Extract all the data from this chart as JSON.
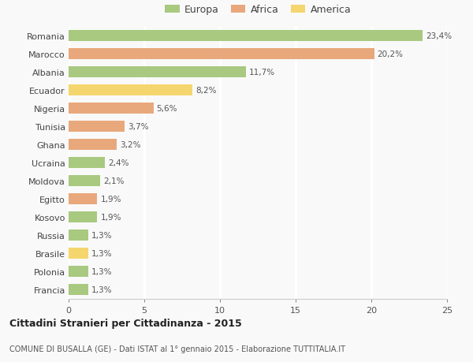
{
  "countries": [
    "Romania",
    "Marocco",
    "Albania",
    "Ecuador",
    "Nigeria",
    "Tunisia",
    "Ghana",
    "Ucraina",
    "Moldova",
    "Egitto",
    "Kosovo",
    "Russia",
    "Brasile",
    "Polonia",
    "Francia"
  ],
  "values": [
    23.4,
    20.2,
    11.7,
    8.2,
    5.6,
    3.7,
    3.2,
    2.4,
    2.1,
    1.9,
    1.9,
    1.3,
    1.3,
    1.3,
    1.3
  ],
  "labels": [
    "23,4%",
    "20,2%",
    "11,7%",
    "8,2%",
    "5,6%",
    "3,7%",
    "3,2%",
    "2,4%",
    "2,1%",
    "1,9%",
    "1,9%",
    "1,3%",
    "1,3%",
    "1,3%",
    "1,3%"
  ],
  "continents": [
    "Europa",
    "Africa",
    "Europa",
    "America",
    "Africa",
    "Africa",
    "Africa",
    "Europa",
    "Europa",
    "Africa",
    "Europa",
    "Europa",
    "America",
    "Europa",
    "Europa"
  ],
  "colors": {
    "Europa": "#a8c97f",
    "Africa": "#e8a87c",
    "America": "#f5d66e"
  },
  "title": "Cittadini Stranieri per Cittadinanza - 2015",
  "subtitle": "COMUNE DI BUSALLA (GE) - Dati ISTAT al 1° gennaio 2015 - Elaborazione TUTTITALIA.IT",
  "xlim": [
    0,
    25
  ],
  "xticks": [
    0,
    5,
    10,
    15,
    20,
    25
  ],
  "background_color": "#f9f9f9",
  "grid_color": "#ffffff",
  "bar_height": 0.6
}
